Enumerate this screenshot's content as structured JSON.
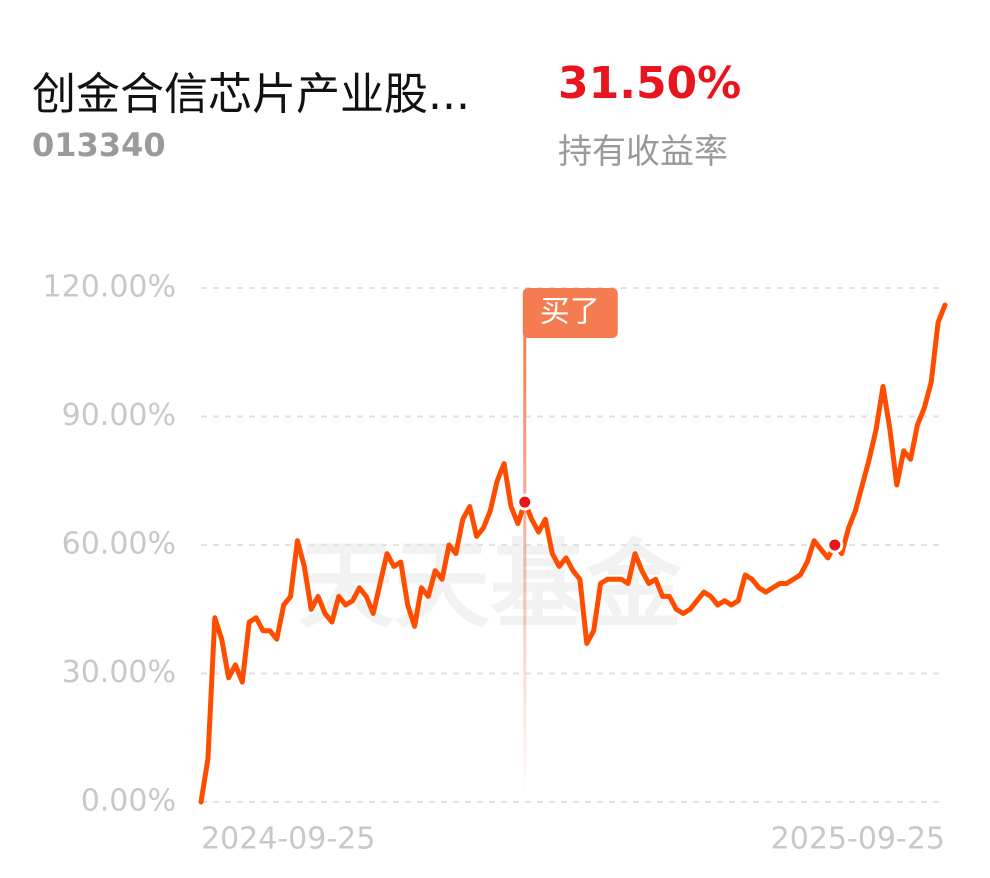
{
  "header": {
    "title": "创金合信芯片产业股...",
    "code": "013340",
    "return": "31.50%",
    "return_label": "持有收益率"
  },
  "chart_data": {
    "type": "line",
    "watermark": "天天基金",
    "categories": [
      "2024-09-25",
      null,
      null,
      null,
      null,
      null,
      null,
      null,
      null,
      null,
      null,
      null,
      null,
      null,
      null,
      null,
      null,
      null,
      null,
      null,
      null,
      null,
      null,
      null,
      null,
      null,
      null,
      null,
      null,
      null,
      null,
      null,
      null,
      null,
      null,
      null,
      null,
      null,
      null,
      null,
      null,
      null,
      null,
      null,
      null,
      null,
      null,
      null,
      null,
      null,
      null,
      null,
      null,
      null,
      null,
      null,
      null,
      null,
      null,
      null,
      null,
      null,
      null,
      null,
      null,
      null,
      null,
      null,
      null,
      null,
      null,
      null,
      null,
      null,
      null,
      null,
      null,
      null,
      null,
      null,
      null,
      null,
      null,
      null,
      null,
      null,
      null,
      null,
      null,
      null,
      null,
      null,
      null,
      null,
      null,
      null,
      null,
      null,
      null,
      null,
      null,
      null,
      null,
      null,
      null,
      null,
      null,
      null,
      "2025-09-25"
    ],
    "values": [
      0,
      10,
      43,
      38,
      29,
      32,
      28,
      42,
      43,
      40,
      40,
      38,
      46,
      48,
      61,
      55,
      45,
      48,
      44,
      42,
      48,
      46,
      47,
      50,
      48,
      44,
      51,
      58,
      55,
      56,
      46,
      41,
      50,
      48,
      54,
      52,
      60,
      58,
      66,
      69,
      62,
      64,
      68,
      75,
      79,
      69,
      65,
      70,
      66,
      63,
      66,
      58,
      55,
      57,
      54,
      52,
      37,
      40,
      51,
      52,
      52,
      52,
      51,
      58,
      54,
      51,
      52,
      48,
      48,
      45,
      44,
      45,
      47,
      49,
      48,
      46,
      47,
      46,
      47,
      53,
      52,
      50,
      49,
      50,
      51,
      51,
      52,
      53,
      56,
      61,
      59,
      57,
      60,
      58,
      64,
      68,
      74,
      80,
      87,
      97,
      87,
      74,
      82,
      80,
      88,
      92,
      98,
      112,
      116
    ],
    "color": "#ff4d00",
    "ylim": [
      0,
      120
    ],
    "yticks": [
      {
        "value": 0,
        "label": "0.00%"
      },
      {
        "value": 30,
        "label": "30.00%"
      },
      {
        "value": 60,
        "label": "60.00%"
      },
      {
        "value": 90,
        "label": "90.00%"
      },
      {
        "value": 120,
        "label": "120.00%"
      }
    ],
    "grid": true,
    "annotations": [
      {
        "text": "买了",
        "index": 47
      }
    ],
    "markers": [
      47,
      92
    ]
  }
}
